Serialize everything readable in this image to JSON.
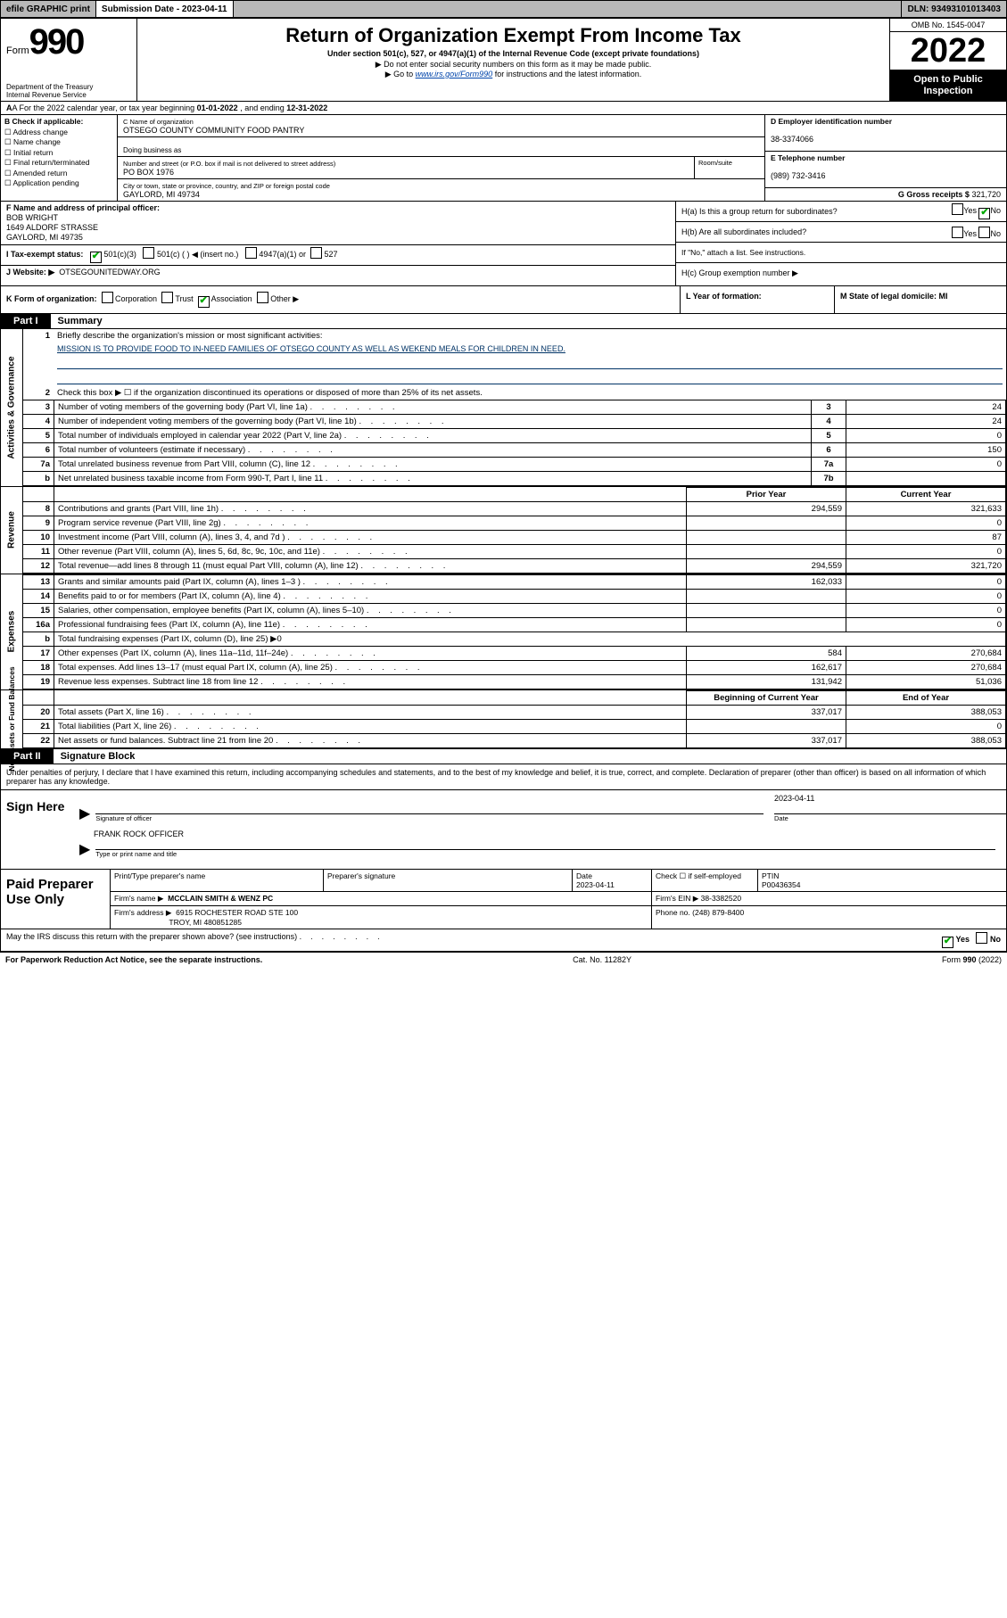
{
  "topbar": {
    "efile": "efile GRAPHIC print",
    "sub_label": "Submission Date - 2023-04-11",
    "dln": "DLN: 93493101013403"
  },
  "header": {
    "form_prefix": "Form",
    "form_num": "990",
    "dept": "Department of the Treasury\nInternal Revenue Service",
    "title": "Return of Organization Exempt From Income Tax",
    "sub1": "Under section 501(c), 527, or 4947(a)(1) of the Internal Revenue Code (except private foundations)",
    "sub2": "▶ Do not enter social security numbers on this form as it may be made public.",
    "sub3_pre": "▶ Go to ",
    "sub3_link": "www.irs.gov/Form990",
    "sub3_post": " for instructions and the latest information.",
    "omb": "OMB No. 1545-0047",
    "year": "2022",
    "inspect": "Open to Public Inspection"
  },
  "row_a": {
    "text_pre": "A For the 2022 calendar year, or tax year beginning ",
    "begin": "01-01-2022",
    "mid": " , and ending ",
    "end": "12-31-2022"
  },
  "b": {
    "label": "B Check if applicable:",
    "items": [
      "Address change",
      "Name change",
      "Initial return",
      "Final return/terminated",
      "Amended return",
      "Application pending"
    ]
  },
  "c": {
    "name_lbl": "C Name of organization",
    "name": "OTSEGO COUNTY COMMUNITY FOOD PANTRY",
    "dba_lbl": "Doing business as",
    "addr_lbl": "Number and street (or P.O. box if mail is not delivered to street address)",
    "addr": "PO BOX 1976",
    "room_lbl": "Room/suite",
    "city_lbl": "City or town, state or province, country, and ZIP or foreign postal code",
    "city": "GAYLORD, MI  49734"
  },
  "d": {
    "ein_lbl": "D Employer identification number",
    "ein": "38-3374066",
    "phone_lbl": "E Telephone number",
    "phone": "(989) 732-3416",
    "gross_lbl": "G Gross receipts $",
    "gross": "321,720"
  },
  "f": {
    "lbl": "F Name and address of principal officer:",
    "name": "BOB WRIGHT",
    "addr1": "1649 ALDORF STRASSE",
    "addr2": "GAYLORD, MI  49735"
  },
  "i": {
    "lbl": "I    Tax-exempt status:",
    "opts": [
      "501(c)(3)",
      "501(c) (  ) ◀ (insert no.)",
      "4947(a)(1) or",
      "527"
    ]
  },
  "j": {
    "lbl": "J    Website: ▶",
    "val": "OTSEGOUNITEDWAY.ORG"
  },
  "h": {
    "a_lbl": "H(a)  Is this a group return for subordinates?",
    "b_lbl": "H(b)  Are all subordinates included?",
    "b_note": "If \"No,\" attach a list. See instructions.",
    "c_lbl": "H(c)  Group exemption number ▶"
  },
  "k": {
    "lbl": "K Form of organization:",
    "opts": [
      "Corporation",
      "Trust",
      "Association",
      "Other ▶"
    ]
  },
  "l": {
    "lbl": "L Year of formation:"
  },
  "m": {
    "lbl": "M State of legal domicile: MI"
  },
  "parts": {
    "p1": "Part I",
    "p1_title": "Summary",
    "p2": "Part II",
    "p2_title": "Signature Block"
  },
  "summary": {
    "gov": {
      "label": "Activities & Governance",
      "l1": "Briefly describe the organization's mission or most significant activities:",
      "mission": "MISSION IS TO PROVIDE FOOD TO IN-NEED FAMILIES OF OTSEGO COUNTY AS WELL AS WEKEND MEALS FOR CHILDREN IN NEED.",
      "l2": "Check this box ▶ ☐  if the organization discontinued its operations or disposed of more than 25% of its net assets.",
      "rows": [
        {
          "n": "3",
          "t": "Number of voting members of the governing body (Part VI, line 1a)",
          "box": "3",
          "v": "24"
        },
        {
          "n": "4",
          "t": "Number of independent voting members of the governing body (Part VI, line 1b)",
          "box": "4",
          "v": "24"
        },
        {
          "n": "5",
          "t": "Total number of individuals employed in calendar year 2022 (Part V, line 2a)",
          "box": "5",
          "v": "0"
        },
        {
          "n": "6",
          "t": "Total number of volunteers (estimate if necessary)",
          "box": "6",
          "v": "150"
        },
        {
          "n": "7a",
          "t": "Total unrelated business revenue from Part VIII, column (C), line 12",
          "box": "7a",
          "v": "0"
        },
        {
          "n": "b",
          "t": "Net unrelated business taxable income from Form 990-T, Part I, line 11",
          "box": "7b",
          "v": ""
        }
      ]
    },
    "col_hdr": {
      "prior": "Prior Year",
      "curr": "Current Year"
    },
    "rev": {
      "label": "Revenue",
      "rows": [
        {
          "n": "8",
          "t": "Contributions and grants (Part VIII, line 1h)",
          "p": "294,559",
          "c": "321,633"
        },
        {
          "n": "9",
          "t": "Program service revenue (Part VIII, line 2g)",
          "p": "",
          "c": "0"
        },
        {
          "n": "10",
          "t": "Investment income (Part VIII, column (A), lines 3, 4, and 7d )",
          "p": "",
          "c": "87"
        },
        {
          "n": "11",
          "t": "Other revenue (Part VIII, column (A), lines 5, 6d, 8c, 9c, 10c, and 11e)",
          "p": "",
          "c": "0"
        },
        {
          "n": "12",
          "t": "Total revenue—add lines 8 through 11 (must equal Part VIII, column (A), line 12)",
          "p": "294,559",
          "c": "321,720"
        }
      ]
    },
    "exp": {
      "label": "Expenses",
      "rows": [
        {
          "n": "13",
          "t": "Grants and similar amounts paid (Part IX, column (A), lines 1–3 )",
          "p": "162,033",
          "c": "0"
        },
        {
          "n": "14",
          "t": "Benefits paid to or for members (Part IX, column (A), line 4)",
          "p": "",
          "c": "0"
        },
        {
          "n": "15",
          "t": "Salaries, other compensation, employee benefits (Part IX, column (A), lines 5–10)",
          "p": "",
          "c": "0"
        },
        {
          "n": "16a",
          "t": "Professional fundraising fees (Part IX, column (A), line 11e)",
          "p": "",
          "c": "0"
        },
        {
          "n": "b",
          "t": "Total fundraising expenses (Part IX, column (D), line 25) ▶0",
          "p": null,
          "c": null
        },
        {
          "n": "17",
          "t": "Other expenses (Part IX, column (A), lines 11a–11d, 11f–24e)",
          "p": "584",
          "c": "270,684"
        },
        {
          "n": "18",
          "t": "Total expenses. Add lines 13–17 (must equal Part IX, column (A), line 25)",
          "p": "162,617",
          "c": "270,684"
        },
        {
          "n": "19",
          "t": "Revenue less expenses. Subtract line 18 from line 12",
          "p": "131,942",
          "c": "51,036"
        }
      ]
    },
    "net": {
      "label": "Net Assets or Fund Balances",
      "hdr": {
        "beg": "Beginning of Current Year",
        "end": "End of Year"
      },
      "rows": [
        {
          "n": "20",
          "t": "Total assets (Part X, line 16)",
          "p": "337,017",
          "c": "388,053"
        },
        {
          "n": "21",
          "t": "Total liabilities (Part X, line 26)",
          "p": "",
          "c": "0"
        },
        {
          "n": "22",
          "t": "Net assets or fund balances. Subtract line 21 from line 20",
          "p": "337,017",
          "c": "388,053"
        }
      ]
    }
  },
  "sig": {
    "decl": "Under penalties of perjury, I declare that I have examined this return, including accompanying schedules and statements, and to the best of my knowledge and belief, it is true, correct, and complete. Declaration of preparer (other than officer) is based on all information of which preparer has any knowledge.",
    "sign_here": "Sign Here",
    "date": "2023-04-11",
    "sig_lbl": "Signature of officer",
    "date_lbl": "Date",
    "name": "FRANK ROCK OFFICER",
    "name_lbl": "Type or print name and title"
  },
  "prep": {
    "label": "Paid Preparer Use Only",
    "h1": "Print/Type preparer's name",
    "h2": "Preparer's signature",
    "h3_d": "Date",
    "h3_v": "2023-04-11",
    "h4": "Check ☐ if self-employed",
    "h5_l": "PTIN",
    "h5_v": "P00436354",
    "firm_lbl": "Firm's name    ▶",
    "firm": "MCCLAIN SMITH & WENZ PC",
    "ein_lbl": "Firm's EIN ▶",
    "ein": "38-3382520",
    "addr_lbl": "Firm's address ▶",
    "addr1": "6915 ROCHESTER ROAD STE 100",
    "addr2": "TROY, MI  480851285",
    "phone_lbl": "Phone no.",
    "phone": "(248) 879-8400"
  },
  "footer": {
    "q": "May the IRS discuss this return with the preparer shown above? (see instructions)",
    "yes": "Yes",
    "no": "No",
    "pra": "For Paperwork Reduction Act Notice, see the separate instructions.",
    "cat": "Cat. No. 11282Y",
    "form": "Form 990 (2022)"
  }
}
